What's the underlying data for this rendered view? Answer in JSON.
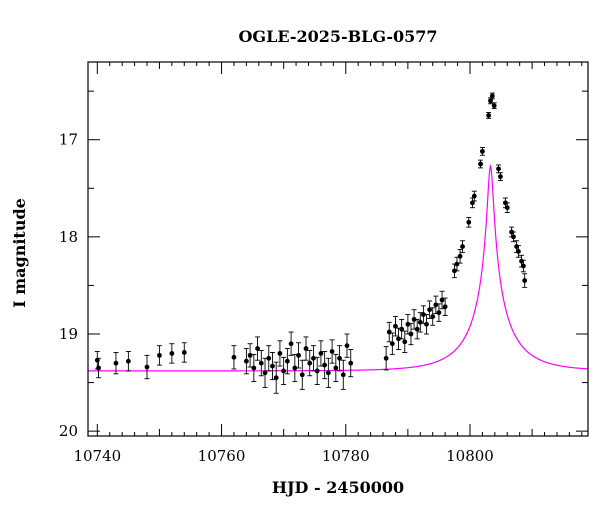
{
  "chart_data": {
    "type": "scatter",
    "title": "OGLE-2025-BLG-0577",
    "xlabel": "HJD - 2450000",
    "ylabel": "I magnitude",
    "xlim": [
      10738.5,
      10819
    ],
    "ylim": [
      20.05,
      16.2
    ],
    "y_inverted": true,
    "x_ticks": [
      10740,
      10760,
      10780,
      10800
    ],
    "y_ticks": [
      17,
      18,
      19,
      20
    ],
    "grid": false,
    "colors": {
      "points": "#000000",
      "model": "#ff00ff"
    },
    "series": [
      {
        "kind": "errorbar",
        "points": [
          {
            "x": 10740.0,
            "y": 19.27,
            "err": 0.09
          },
          {
            "x": 10740.2,
            "y": 19.35,
            "err": 0.1
          },
          {
            "x": 10743.0,
            "y": 19.3,
            "err": 0.11
          },
          {
            "x": 10745.0,
            "y": 19.28,
            "err": 0.1
          },
          {
            "x": 10748.0,
            "y": 19.34,
            "err": 0.12
          },
          {
            "x": 10750.0,
            "y": 19.22,
            "err": 0.1
          },
          {
            "x": 10752.0,
            "y": 19.2,
            "err": 0.1
          },
          {
            "x": 10754.0,
            "y": 19.19,
            "err": 0.1
          },
          {
            "x": 10762.0,
            "y": 19.24,
            "err": 0.12
          },
          {
            "x": 10764.0,
            "y": 19.28,
            "err": 0.13
          },
          {
            "x": 10764.6,
            "y": 19.22,
            "err": 0.12
          },
          {
            "x": 10765.2,
            "y": 19.35,
            "err": 0.14
          },
          {
            "x": 10765.8,
            "y": 19.15,
            "err": 0.12
          },
          {
            "x": 10766.4,
            "y": 19.3,
            "err": 0.13
          },
          {
            "x": 10767.0,
            "y": 19.4,
            "err": 0.15
          },
          {
            "x": 10767.6,
            "y": 19.25,
            "err": 0.13
          },
          {
            "x": 10768.2,
            "y": 19.33,
            "err": 0.14
          },
          {
            "x": 10768.8,
            "y": 19.45,
            "err": 0.16
          },
          {
            "x": 10769.4,
            "y": 19.2,
            "err": 0.13
          },
          {
            "x": 10770.0,
            "y": 19.38,
            "err": 0.14
          },
          {
            "x": 10770.6,
            "y": 19.28,
            "err": 0.13
          },
          {
            "x": 10771.2,
            "y": 19.1,
            "err": 0.12
          },
          {
            "x": 10771.8,
            "y": 19.35,
            "err": 0.14
          },
          {
            "x": 10772.4,
            "y": 19.22,
            "err": 0.13
          },
          {
            "x": 10773.0,
            "y": 19.42,
            "err": 0.15
          },
          {
            "x": 10773.6,
            "y": 19.15,
            "err": 0.12
          },
          {
            "x": 10774.2,
            "y": 19.3,
            "err": 0.13
          },
          {
            "x": 10774.8,
            "y": 19.25,
            "err": 0.13
          },
          {
            "x": 10775.4,
            "y": 19.38,
            "err": 0.14
          },
          {
            "x": 10776.0,
            "y": 19.2,
            "err": 0.13
          },
          {
            "x": 10776.6,
            "y": 19.32,
            "err": 0.14
          },
          {
            "x": 10777.2,
            "y": 19.4,
            "err": 0.15
          },
          {
            "x": 10777.8,
            "y": 19.18,
            "err": 0.12
          },
          {
            "x": 10778.4,
            "y": 19.35,
            "err": 0.14
          },
          {
            "x": 10779.0,
            "y": 19.25,
            "err": 0.13
          },
          {
            "x": 10779.6,
            "y": 19.42,
            "err": 0.15
          },
          {
            "x": 10780.2,
            "y": 19.12,
            "err": 0.12
          },
          {
            "x": 10780.8,
            "y": 19.3,
            "err": 0.14
          },
          {
            "x": 10786.5,
            "y": 19.25,
            "err": 0.12
          },
          {
            "x": 10787.0,
            "y": 18.98,
            "err": 0.1
          },
          {
            "x": 10787.5,
            "y": 19.1,
            "err": 0.11
          },
          {
            "x": 10788.0,
            "y": 18.92,
            "err": 0.1
          },
          {
            "x": 10788.5,
            "y": 19.05,
            "err": 0.11
          },
          {
            "x": 10789.0,
            "y": 18.95,
            "err": 0.1
          },
          {
            "x": 10789.5,
            "y": 19.08,
            "err": 0.11
          },
          {
            "x": 10790.0,
            "y": 18.9,
            "err": 0.1
          },
          {
            "x": 10790.5,
            "y": 19.0,
            "err": 0.11
          },
          {
            "x": 10791.0,
            "y": 18.85,
            "err": 0.1
          },
          {
            "x": 10791.5,
            "y": 18.95,
            "err": 0.1
          },
          {
            "x": 10792.0,
            "y": 18.88,
            "err": 0.1
          },
          {
            "x": 10792.5,
            "y": 18.8,
            "err": 0.09
          },
          {
            "x": 10793.0,
            "y": 18.9,
            "err": 0.1
          },
          {
            "x": 10793.5,
            "y": 18.75,
            "err": 0.09
          },
          {
            "x": 10794.0,
            "y": 18.82,
            "err": 0.09
          },
          {
            "x": 10794.5,
            "y": 18.7,
            "err": 0.09
          },
          {
            "x": 10795.0,
            "y": 18.78,
            "err": 0.09
          },
          {
            "x": 10795.5,
            "y": 18.65,
            "err": 0.09
          },
          {
            "x": 10796.0,
            "y": 18.72,
            "err": 0.09
          },
          {
            "x": 10797.5,
            "y": 18.35,
            "err": 0.07
          },
          {
            "x": 10797.9,
            "y": 18.28,
            "err": 0.07
          },
          {
            "x": 10798.4,
            "y": 18.2,
            "err": 0.07
          },
          {
            "x": 10798.8,
            "y": 18.1,
            "err": 0.06
          },
          {
            "x": 10799.8,
            "y": 17.85,
            "err": 0.05
          },
          {
            "x": 10800.4,
            "y": 17.65,
            "err": 0.05
          },
          {
            "x": 10800.7,
            "y": 17.58,
            "err": 0.05
          },
          {
            "x": 10801.7,
            "y": 17.25,
            "err": 0.04
          },
          {
            "x": 10802.0,
            "y": 17.12,
            "err": 0.04
          },
          {
            "x": 10803.0,
            "y": 16.75,
            "err": 0.03
          },
          {
            "x": 10803.3,
            "y": 16.6,
            "err": 0.03
          },
          {
            "x": 10803.6,
            "y": 16.55,
            "err": 0.03
          },
          {
            "x": 10803.9,
            "y": 16.65,
            "err": 0.03
          },
          {
            "x": 10804.6,
            "y": 17.3,
            "err": 0.04
          },
          {
            "x": 10804.9,
            "y": 17.38,
            "err": 0.04
          },
          {
            "x": 10805.7,
            "y": 17.65,
            "err": 0.05
          },
          {
            "x": 10806.0,
            "y": 17.7,
            "err": 0.05
          },
          {
            "x": 10806.7,
            "y": 17.95,
            "err": 0.05
          },
          {
            "x": 10807.0,
            "y": 18.0,
            "err": 0.05
          },
          {
            "x": 10807.5,
            "y": 18.1,
            "err": 0.06
          },
          {
            "x": 10807.8,
            "y": 18.15,
            "err": 0.06
          },
          {
            "x": 10808.3,
            "y": 18.25,
            "err": 0.06
          },
          {
            "x": 10808.6,
            "y": 18.3,
            "err": 0.06
          },
          {
            "x": 10808.8,
            "y": 18.45,
            "err": 0.07
          }
        ]
      },
      {
        "kind": "model-curve",
        "model": {
          "t0": 10803.3,
          "tE": 7.4,
          "u0": 0.06,
          "base": 19.38,
          "blend_fs": 0.38
        }
      }
    ]
  }
}
